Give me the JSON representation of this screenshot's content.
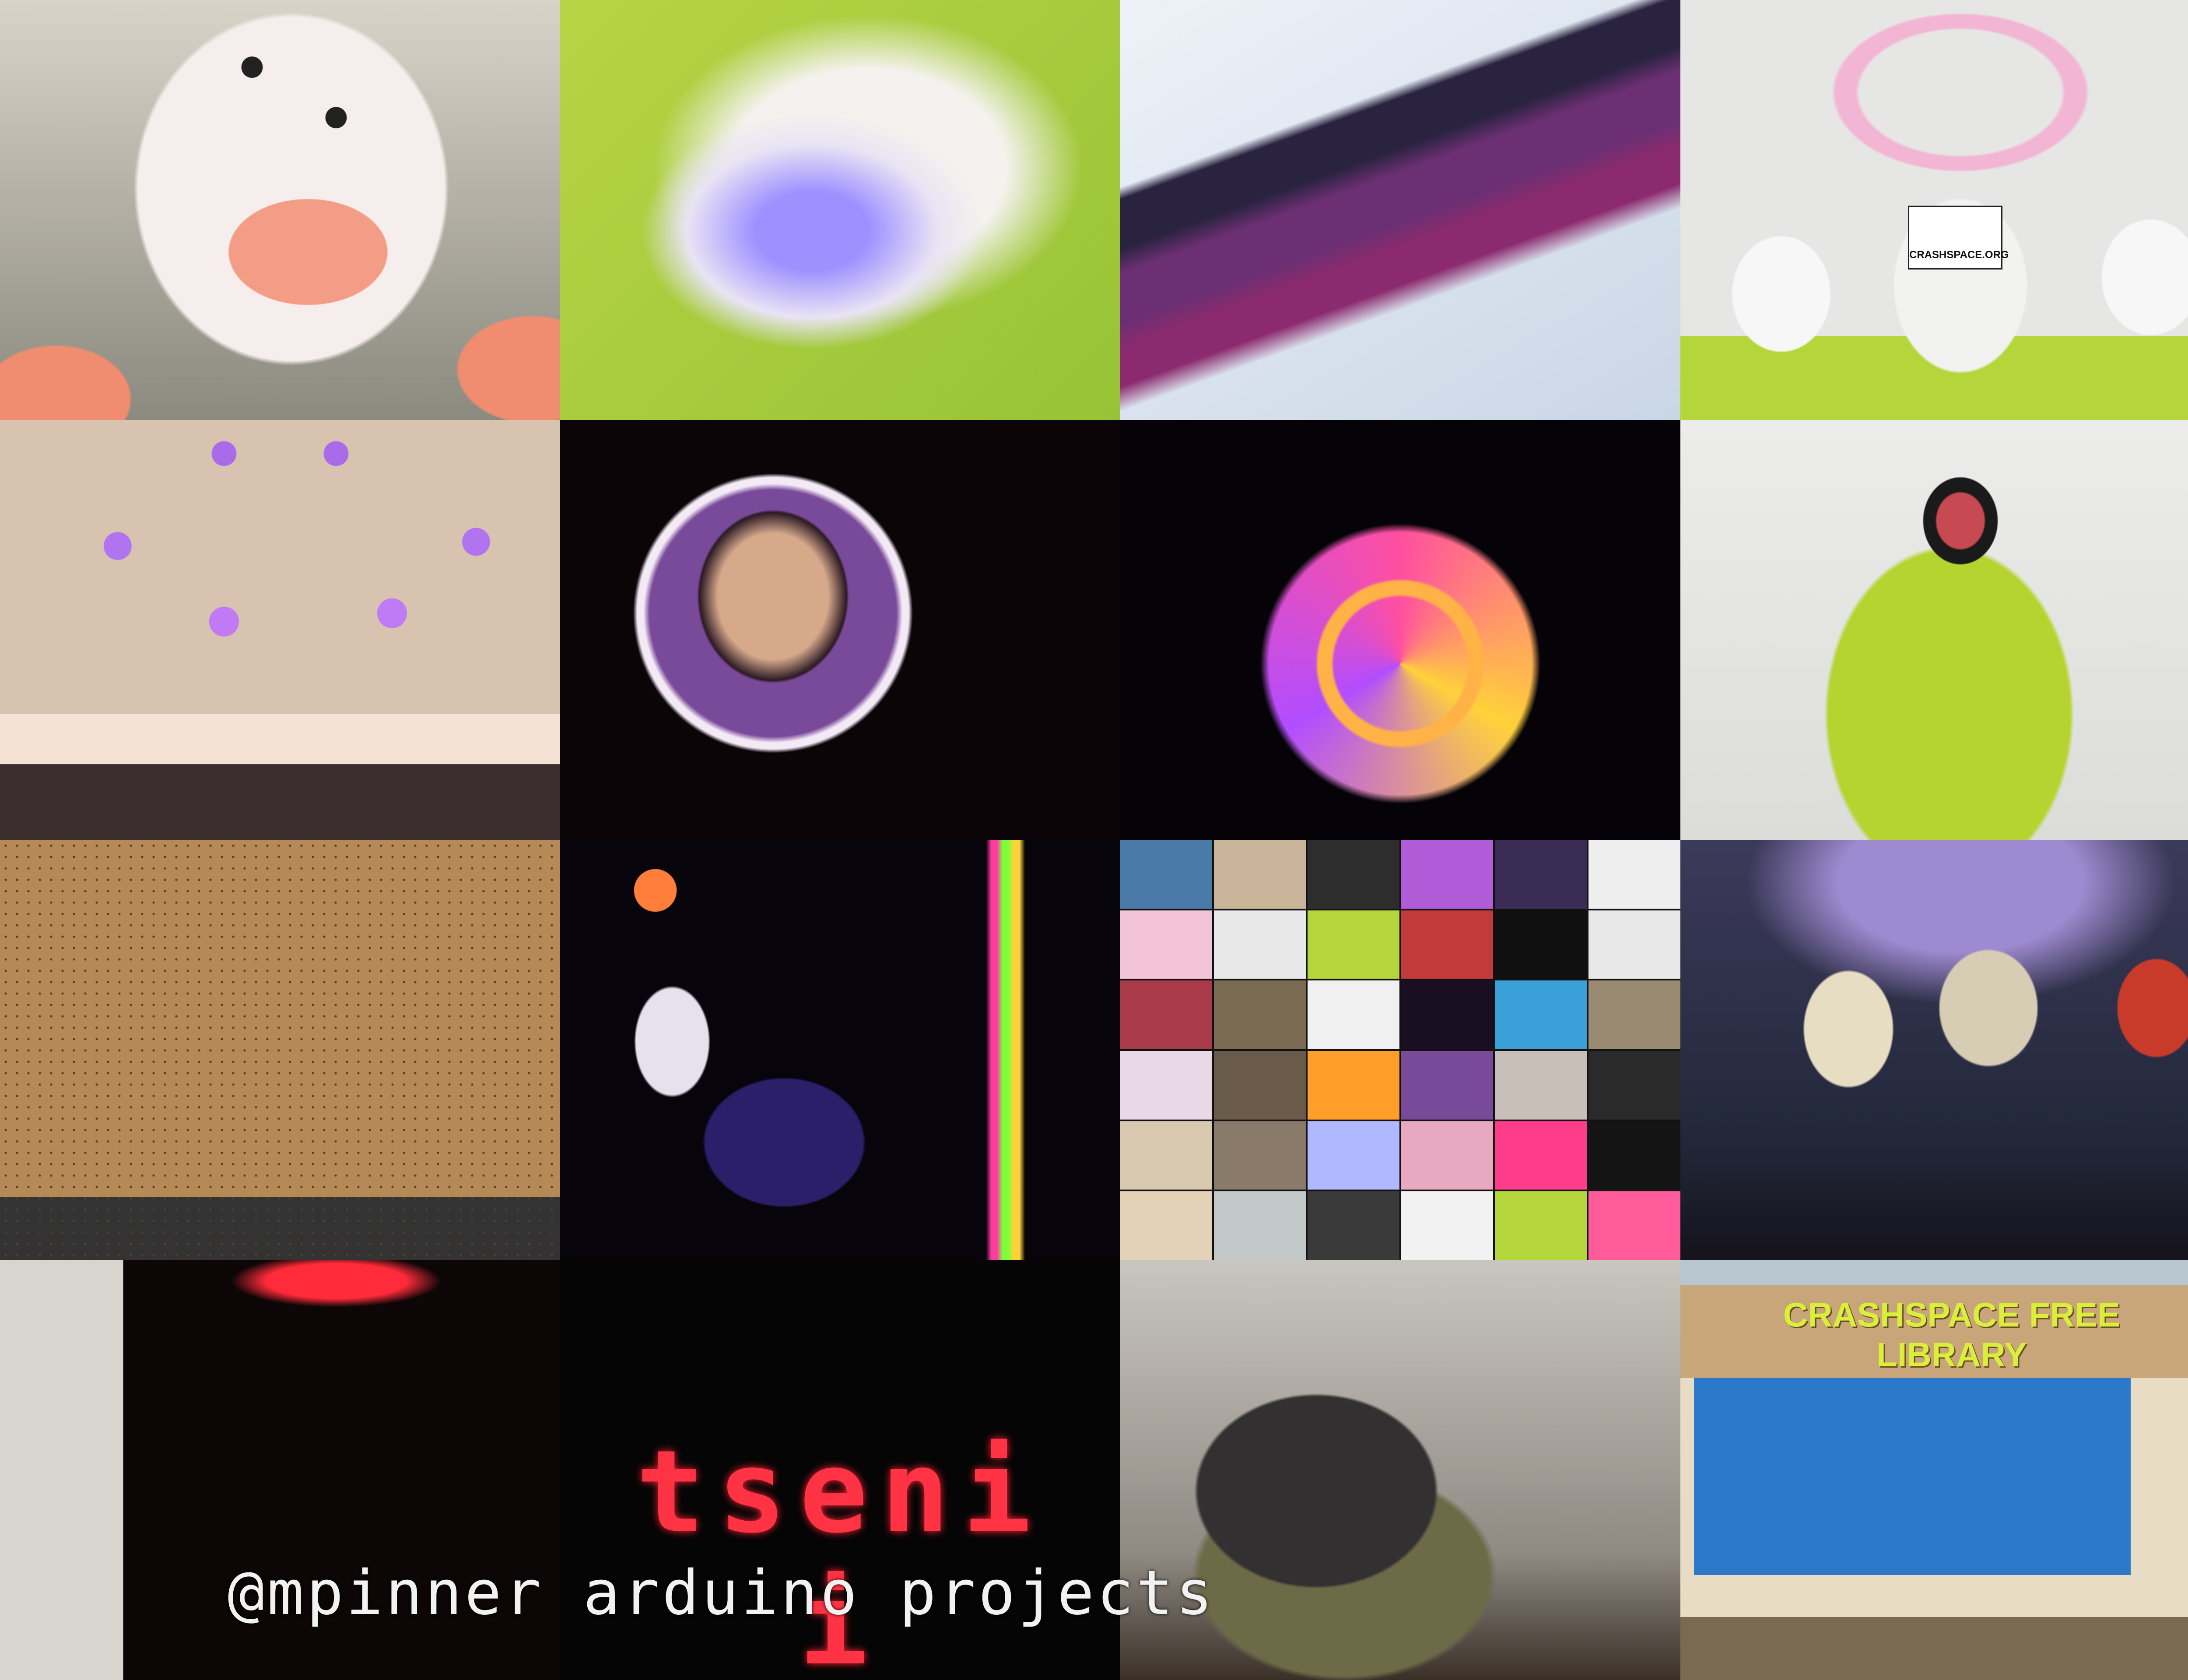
{
  "caption": "@mpinner arduino projects",
  "sign": {
    "library_title": "CRASHSPACE FREE LIBRARY",
    "sticker_text": "CRASHSPACE.ORG"
  },
  "led_display": {
    "text": "tseni i"
  },
  "mini_collage": {
    "colors": [
      "#4a7aa8",
      "#c9b49a",
      "#2d2d2d",
      "#b05cd8",
      "#3b2c56",
      "#eeeeee",
      "#f3c4d8",
      "#e8e8e8",
      "#b4d63a",
      "#c23a3a",
      "#101010",
      "#e8e8e8",
      "#a83a4a",
      "#7a6a52",
      "#f0f0f0",
      "#1a0f22",
      "#3aa0d8",
      "#9a8a72",
      "#e8d8e8",
      "#6a5a4a",
      "#ff9f2a",
      "#7a4a9a",
      "#c8c0b8",
      "#2a2a2a",
      "#d9c9b0",
      "#8a7a6a",
      "#b0b8ff",
      "#e8a8c0",
      "#ff3c8a",
      "#141414",
      "#e3d2b8",
      "#c2c8c8",
      "#3a3a3a",
      "#f2f2f2",
      "#b4d63a",
      "#ff5a9a"
    ]
  }
}
